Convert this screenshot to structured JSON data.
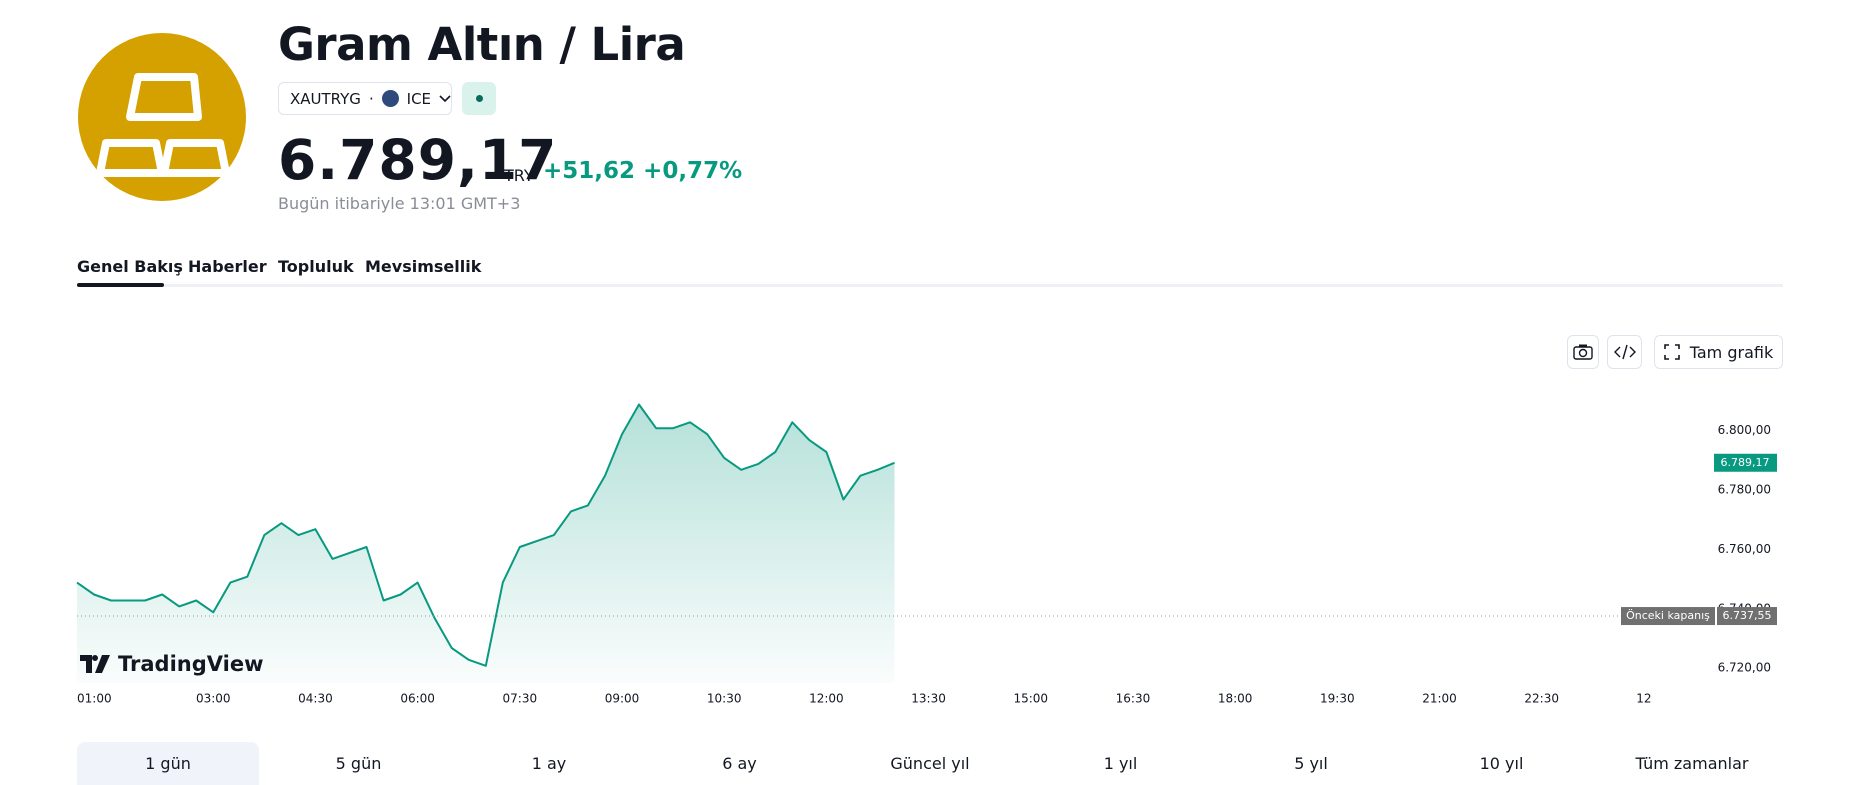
{
  "header": {
    "title": "Gram Altın / Lira",
    "symbol": "XAUTRYG",
    "exchange": "ICE",
    "price": "6.789,17",
    "currency": "TRY",
    "change": "+51,62",
    "change_percent": "+0,77%",
    "timestamp": "Bugün itibariyle 13:01 GMT+3"
  },
  "tabs": {
    "items": [
      "Genel Bakış",
      "Haberler",
      "Topluluk",
      "Mevsimsellik"
    ],
    "active": 0
  },
  "toolbar": {
    "full_chart": "Tam grafik"
  },
  "watermark": "TradingView",
  "ranges": {
    "items": [
      "1 gün",
      "5 gün",
      "1 ay",
      "6 ay",
      "Güncel yıl",
      "1 yıl",
      "5 yıl",
      "10 yıl",
      "Tüm zamanlar"
    ],
    "active": 0
  },
  "chart_data": {
    "type": "area",
    "color": "#089981",
    "x": [
      60,
      75,
      90,
      105,
      120,
      135,
      150,
      165,
      180,
      195,
      210,
      225,
      240,
      255,
      270,
      285,
      300,
      315,
      330,
      345,
      360,
      375,
      390,
      405,
      420,
      435,
      450,
      465,
      480,
      495,
      510,
      525,
      540,
      555,
      570,
      585,
      600,
      615,
      630,
      645,
      660,
      675,
      690,
      705,
      720,
      735,
      750,
      765,
      780
    ],
    "values": [
      6748.8,
      6744.8,
      6742.8,
      6742.8,
      6742.8,
      6744.8,
      6740.8,
      6742.8,
      6738.8,
      6748.8,
      6750.8,
      6764.8,
      6768.8,
      6764.8,
      6766.8,
      6756.8,
      6758.8,
      6760.8,
      6742.8,
      6744.8,
      6748.8,
      6736.8,
      6726.8,
      6722.8,
      6720.8,
      6748.8,
      6760.8,
      6762.8,
      6764.8,
      6772.8,
      6774.8,
      6784.8,
      6798.8,
      6808.8,
      6800.8,
      6800.8,
      6802.8,
      6798.8,
      6790.8,
      6786.8,
      6788.8,
      6792.8,
      6802.8,
      6796.8,
      6792.8,
      6776.8,
      6784.8,
      6786.8,
      6789.17
    ],
    "xlim": [
      60,
      1500
    ],
    "xticks": [
      {
        "value": 60,
        "label": "01:00"
      },
      {
        "value": 180,
        "label": "03:00"
      },
      {
        "value": 270,
        "label": "04:30"
      },
      {
        "value": 360,
        "label": "06:00"
      },
      {
        "value": 450,
        "label": "07:30"
      },
      {
        "value": 540,
        "label": "09:00"
      },
      {
        "value": 630,
        "label": "10:30"
      },
      {
        "value": 720,
        "label": "12:00"
      },
      {
        "value": 810,
        "label": "13:30"
      },
      {
        "value": 900,
        "label": "15:00"
      },
      {
        "value": 990,
        "label": "16:30"
      },
      {
        "value": 1080,
        "label": "18:00"
      },
      {
        "value": 1170,
        "label": "19:30"
      },
      {
        "value": 1260,
        "label": "21:00"
      },
      {
        "value": 1350,
        "label": "22:30"
      },
      {
        "value": 1440,
        "label": "12"
      }
    ],
    "ylim": [
      6715,
      6813
    ],
    "yticks": [
      {
        "value": 6720,
        "label": "6.720,00"
      },
      {
        "value": 6740,
        "label": "6.740,00"
      },
      {
        "value": 6760,
        "label": "6.760,00"
      },
      {
        "value": 6780,
        "label": "6.780,00"
      },
      {
        "value": 6800,
        "label": "6.800,00"
      }
    ],
    "last_price": {
      "value": 6789.17,
      "label": "6.789,17"
    },
    "previous_close": {
      "label": "Önceki kapanış",
      "value": 6737.55,
      "value_label": "6.737,55"
    }
  }
}
